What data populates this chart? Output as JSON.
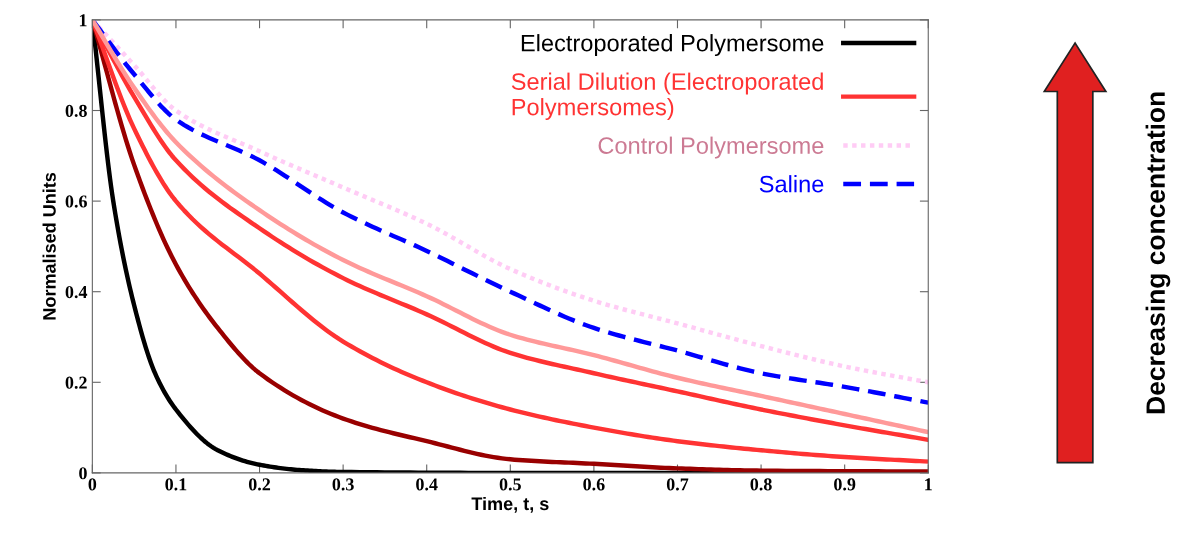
{
  "chart_data": {
    "type": "line",
    "xlabel": "Time, t, s",
    "ylabel": "Normalised Units",
    "xlim": [
      0,
      1
    ],
    "ylim": [
      0,
      1
    ],
    "xticks": [
      0,
      0.1,
      0.2,
      0.3,
      0.4,
      0.5,
      0.6,
      0.7,
      0.8,
      0.9,
      1
    ],
    "yticks": [
      0,
      0.2,
      0.4,
      0.6,
      0.8,
      1
    ],
    "grid": false,
    "legend": "top right",
    "line_style": "solid",
    "annotations": [
      "Decreasing concentration"
    ],
    "series": [
      {
        "name": "Electroporated Polymersome",
        "color": "#000000",
        "x": [
          0,
          0.025,
          0.05,
          0.075,
          0.1,
          0.15,
          0.2,
          0.25,
          0.3,
          0.5,
          1
        ],
        "values": [
          1,
          0.6,
          0.37,
          0.22,
          0.14,
          0.05,
          0.018,
          0.006,
          0.002,
          0,
          0
        ]
      },
      {
        "name": "Serial Dilution (Electroporated\nPolymersomes)",
        "color": "#ff3333",
        "x": [
          0,
          0.05,
          0.1,
          0.2,
          0.3,
          0.4,
          0.5,
          0.6,
          0.7,
          0.8,
          0.9,
          1
        ],
        "values": [
          1,
          0.83,
          0.69,
          0.54,
          0.43,
          0.35,
          0.265,
          0.22,
          0.18,
          0.14,
          0.105,
          0.073
        ]
      },
      {
        "name": "Control Polymersome",
        "color": "#ffccf5",
        "line_style": "dotted",
        "x": [
          0,
          0.05,
          0.1,
          0.2,
          0.3,
          0.4,
          0.5,
          0.6,
          0.7,
          0.8,
          0.9,
          1
        ],
        "values": [
          1,
          0.9,
          0.8,
          0.71,
          0.63,
          0.55,
          0.45,
          0.38,
          0.33,
          0.28,
          0.235,
          0.2
        ]
      },
      {
        "name": "Saline",
        "color": "#0000ff",
        "line_style": "dashed",
        "x": [
          0,
          0.05,
          0.1,
          0.2,
          0.3,
          0.4,
          0.5,
          0.6,
          0.7,
          0.8,
          0.9,
          1
        ],
        "values": [
          1,
          0.88,
          0.78,
          0.69,
          0.575,
          0.49,
          0.4,
          0.32,
          0.27,
          0.22,
          0.19,
          0.155
        ]
      },
      {
        "color": "#990000",
        "x": [
          0,
          0.05,
          0.1,
          0.15,
          0.2,
          0.3,
          0.4,
          0.5,
          0.6,
          0.7,
          0.8,
          1
        ],
        "values": [
          1,
          0.68,
          0.46,
          0.32,
          0.22,
          0.12,
          0.07,
          0.03,
          0.02,
          0.01,
          0.005,
          0.003
        ]
      },
      {
        "color": "#ff3333",
        "x": [
          0,
          0.05,
          0.1,
          0.2,
          0.3,
          0.4,
          0.5,
          0.6,
          0.7,
          0.8,
          0.9,
          1
        ],
        "values": [
          1,
          0.76,
          0.6,
          0.44,
          0.29,
          0.2,
          0.14,
          0.1,
          0.07,
          0.05,
          0.035,
          0.025
        ]
      },
      {
        "color": "#ff9999",
        "x": [
          0,
          0.05,
          0.1,
          0.2,
          0.3,
          0.4,
          0.5,
          0.6,
          0.7,
          0.8,
          0.9,
          1
        ],
        "values": [
          1,
          0.85,
          0.73,
          0.58,
          0.47,
          0.39,
          0.305,
          0.26,
          0.21,
          0.17,
          0.13,
          0.09
        ]
      }
    ]
  }
}
